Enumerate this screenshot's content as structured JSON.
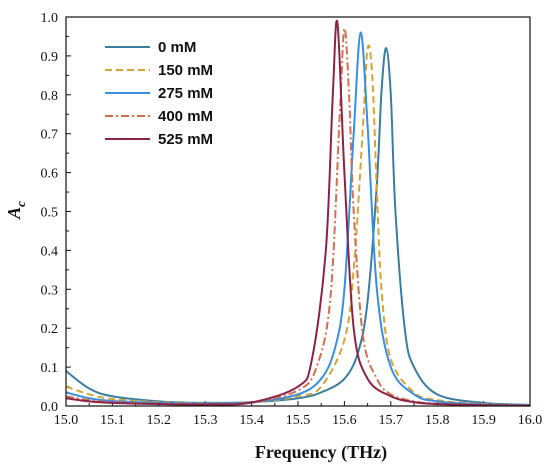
{
  "chart_data": {
    "type": "line",
    "xlabel": "Frequency (THz)",
    "ylabel": "A",
    "ylabel_sub": "c",
    "xlim": [
      15.0,
      16.0
    ],
    "ylim": [
      0.0,
      1.0
    ],
    "xticks": [
      "15.0",
      "15.1",
      "15.2",
      "15.3",
      "15.4",
      "15.5",
      "15.6",
      "15.7",
      "15.8",
      "15.9",
      "16.0"
    ],
    "yticks": [
      "0.0",
      "0.1",
      "0.2",
      "0.3",
      "0.4",
      "0.5",
      "0.6",
      "0.7",
      "0.8",
      "0.9",
      "1.0"
    ],
    "legend_position": "top-left",
    "series": [
      {
        "name": "0 mM",
        "color": "#3a7d9e",
        "dash": "solid",
        "x": [
          15.0,
          15.05,
          15.1,
          15.2,
          15.3,
          15.4,
          15.5,
          15.55,
          15.6,
          15.63,
          15.65,
          15.67,
          15.68,
          15.69,
          15.7,
          15.71,
          15.73,
          15.75,
          15.8,
          15.9,
          16.0
        ],
        "y": [
          0.09,
          0.045,
          0.025,
          0.012,
          0.008,
          0.01,
          0.02,
          0.035,
          0.07,
          0.14,
          0.27,
          0.57,
          0.81,
          0.92,
          0.8,
          0.5,
          0.2,
          0.1,
          0.03,
          0.008,
          0.003
        ]
      },
      {
        "name": "150 mM",
        "color": "#d4a435",
        "dash": "dashed",
        "x": [
          15.0,
          15.05,
          15.1,
          15.2,
          15.3,
          15.4,
          15.5,
          15.55,
          15.6,
          15.62,
          15.64,
          15.65,
          15.66,
          15.67,
          15.68,
          15.7,
          15.75,
          15.8,
          15.9,
          16.0
        ],
        "y": [
          0.05,
          0.03,
          0.018,
          0.01,
          0.007,
          0.009,
          0.025,
          0.05,
          0.17,
          0.35,
          0.72,
          0.92,
          0.85,
          0.55,
          0.3,
          0.12,
          0.035,
          0.015,
          0.005,
          0.002
        ]
      },
      {
        "name": "275 mM",
        "color": "#3a8ee0",
        "dash": "solid",
        "x": [
          15.0,
          15.05,
          15.1,
          15.2,
          15.3,
          15.4,
          15.5,
          15.55,
          15.58,
          15.6,
          15.62,
          15.635,
          15.65,
          15.67,
          15.7,
          15.75,
          15.8,
          15.9,
          16.0
        ],
        "y": [
          0.035,
          0.02,
          0.013,
          0.008,
          0.006,
          0.009,
          0.03,
          0.07,
          0.15,
          0.3,
          0.7,
          0.96,
          0.72,
          0.3,
          0.1,
          0.03,
          0.012,
          0.004,
          0.002
        ]
      },
      {
        "name": "400 mM",
        "color": "#d0704f",
        "dash": "dashdot",
        "x": [
          15.0,
          15.05,
          15.1,
          15.2,
          15.3,
          15.4,
          15.5,
          15.54,
          15.57,
          15.59,
          15.6,
          15.61,
          15.62,
          15.64,
          15.67,
          15.7,
          15.75,
          15.8,
          15.9,
          16.0
        ],
        "y": [
          0.025,
          0.015,
          0.01,
          0.006,
          0.005,
          0.009,
          0.04,
          0.1,
          0.28,
          0.75,
          0.97,
          0.8,
          0.5,
          0.18,
          0.07,
          0.03,
          0.012,
          0.006,
          0.003,
          0.001
        ]
      },
      {
        "name": "525 mM",
        "color": "#8b2346",
        "dash": "solid",
        "x": [
          15.0,
          15.05,
          15.1,
          15.2,
          15.3,
          15.4,
          15.5,
          15.53,
          15.56,
          15.575,
          15.585,
          15.6,
          15.62,
          15.65,
          15.7,
          15.75,
          15.8,
          15.9,
          16.0
        ],
        "y": [
          0.02,
          0.012,
          0.008,
          0.005,
          0.004,
          0.009,
          0.05,
          0.12,
          0.4,
          0.8,
          0.985,
          0.6,
          0.2,
          0.07,
          0.025,
          0.01,
          0.005,
          0.002,
          0.001
        ]
      }
    ]
  }
}
